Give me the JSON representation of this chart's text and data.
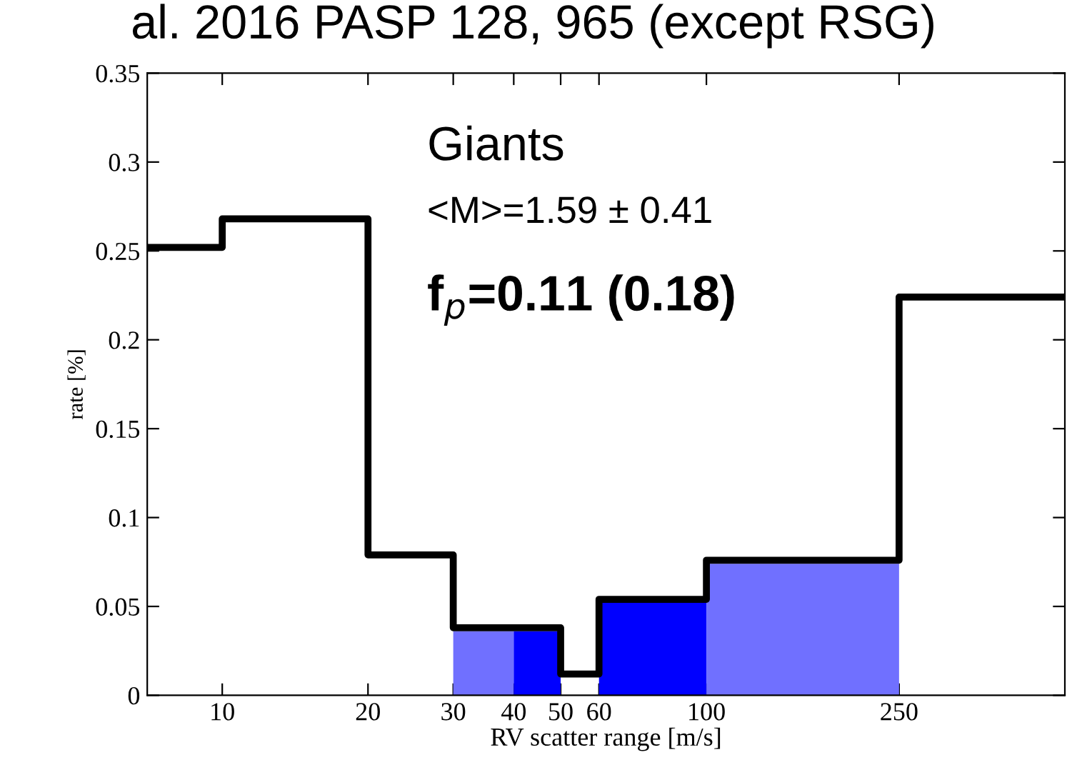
{
  "chart_data": {
    "type": "histogram",
    "title": "al. 2016 PASP 128, 965 (except RSG)",
    "xlabel": "RV scatter range [m/s]",
    "ylabel": "rate [%]",
    "log": "x",
    "xlim": [
      7,
      550
    ],
    "xticks": [
      10,
      20,
      30,
      40,
      50,
      60,
      100,
      250
    ],
    "ylim": [
      0,
      0.35
    ],
    "yticks": [
      0,
      0.05,
      0.1,
      0.15,
      0.2,
      0.25,
      0.3,
      0.35
    ],
    "grid": false,
    "bins": [
      30,
      40,
      50,
      60,
      100,
      250
    ],
    "values": [
      0.036,
      0.036,
      null,
      0.053,
      0.074
    ],
    "colors": [
      "#7070ff",
      "#0000ff",
      "#0000ff",
      "#0000ff",
      "#7070ff"
    ],
    "series": [
      {
        "type": "step",
        "x": [
          7,
          10,
          20,
          30,
          50,
          60,
          100,
          250,
          550
        ],
        "values": [
          0.252,
          0.268,
          0.079,
          0.038,
          0.012,
          0.054,
          0.076,
          0.224,
          0.224
        ],
        "color": "#000000"
      }
    ],
    "annotations": [
      "Giants",
      "<M>=1.59 ± 0.41",
      "f$_{p}$=0.11 (0.18)"
    ]
  }
}
